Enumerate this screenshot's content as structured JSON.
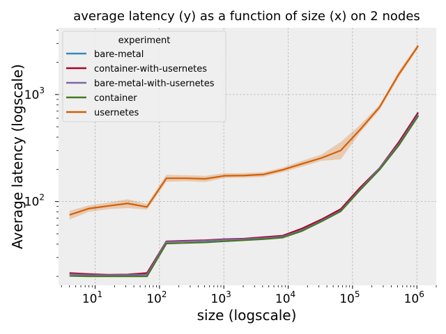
{
  "chart_data": {
    "type": "line",
    "title": "average latency (y) as a function of size (x) on 2 nodes",
    "xlabel": "size (logscale)",
    "ylabel": "Average latency (logscale)",
    "xscale": "log",
    "yscale": "log",
    "xlim": [
      2.7,
      2000000
    ],
    "ylim": [
      16.5,
      4200
    ],
    "x_ticks": [
      {
        "value": 10,
        "base": "10",
        "exp": "1"
      },
      {
        "value": 100,
        "base": "10",
        "exp": "2"
      },
      {
        "value": 1000,
        "base": "10",
        "exp": "3"
      },
      {
        "value": 10000,
        "base": "10",
        "exp": "4"
      },
      {
        "value": 100000,
        "base": "10",
        "exp": "5"
      },
      {
        "value": 1000000,
        "base": "10",
        "exp": "6"
      }
    ],
    "y_ticks": [
      {
        "value": 100,
        "base": "10",
        "exp": "2"
      },
      {
        "value": 1000,
        "base": "10",
        "exp": "3"
      }
    ],
    "grid": true,
    "background": "#eeeeee",
    "legend": {
      "title": "experiment",
      "position": "top-left"
    },
    "x": [
      4,
      8,
      16,
      32,
      64,
      128,
      256,
      512,
      1024,
      2048,
      4096,
      8192,
      16384,
      32768,
      65536,
      131072,
      262144,
      524288,
      1048576
    ],
    "series": [
      {
        "name": "bare-metal",
        "color": "#348abd",
        "values": [
          21,
          20.6,
          20.5,
          20.6,
          20.8,
          42,
          42.5,
          43,
          44,
          44.5,
          45.5,
          47,
          54,
          66,
          82,
          130,
          200,
          340,
          640
        ]
      },
      {
        "name": "container-with-usernetes",
        "color": "#a60628",
        "values": [
          21.5,
          21,
          20.7,
          20.8,
          21.5,
          42.5,
          43,
          43.5,
          44.5,
          45,
          46.5,
          48,
          56,
          68,
          85,
          135,
          205,
          360,
          680
        ]
      },
      {
        "name": "bare-metal-with-usernetes",
        "color": "#7a68a6",
        "values": [
          21,
          20.6,
          20.5,
          20.6,
          20.8,
          42,
          42.5,
          43,
          44,
          44.5,
          45.5,
          47,
          54,
          66,
          82,
          130,
          205,
          345,
          650
        ]
      },
      {
        "name": "container",
        "color": "#467821",
        "values": [
          20.2,
          20,
          20,
          20,
          20,
          40.5,
          41,
          41.5,
          42.5,
          43.5,
          44.5,
          46,
          53,
          65,
          81,
          128,
          198,
          335,
          630
        ]
      },
      {
        "name": "usernetes",
        "color": "#d55e00",
        "values": [
          75,
          86,
          91,
          96,
          89,
          165,
          165,
          163,
          174,
          175,
          179,
          198,
          225,
          255,
          300,
          470,
          760,
          1550,
          2850
        ],
        "band_low": [
          68,
          80,
          85,
          87,
          84,
          153,
          155,
          152,
          166,
          167,
          170,
          188,
          212,
          240,
          248,
          440,
          715,
          1450,
          2700
        ],
        "band_high": [
          82,
          92,
          98,
          105,
          95,
          178,
          176,
          174,
          184,
          184,
          188,
          208,
          240,
          275,
          360,
          520,
          800,
          1650,
          3000
        ]
      }
    ]
  }
}
